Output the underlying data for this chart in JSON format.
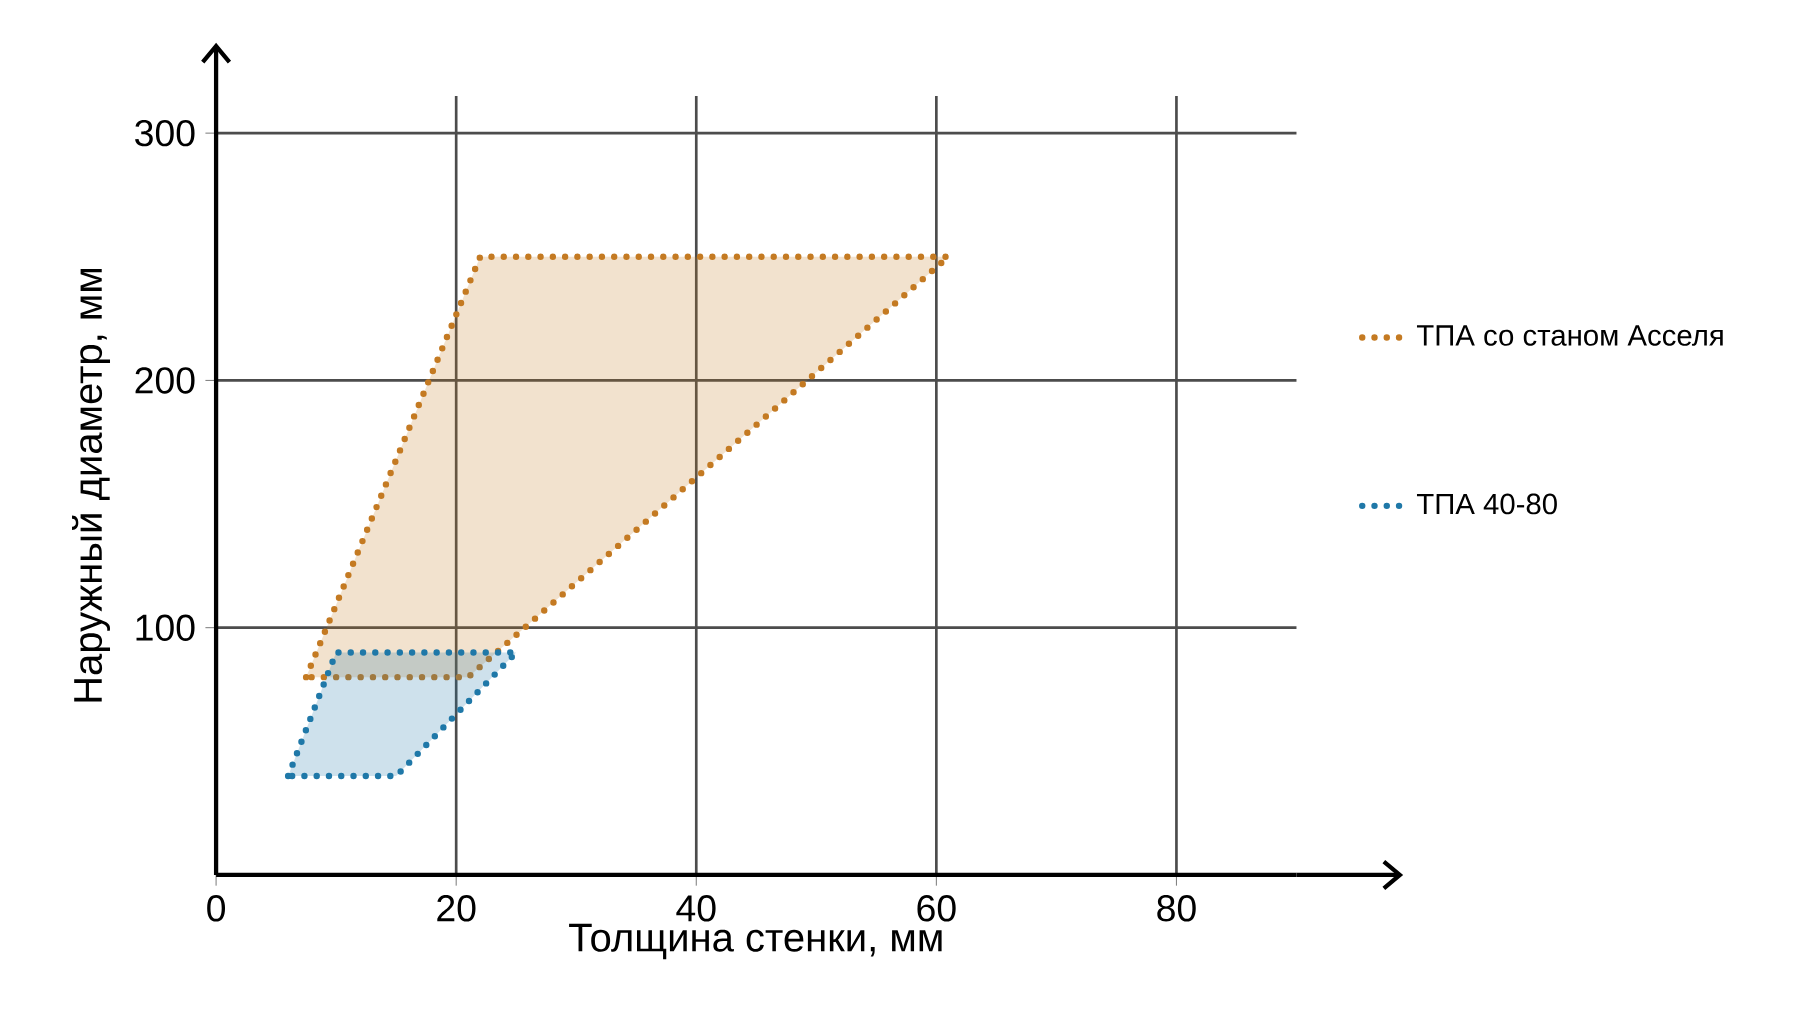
{
  "chart_data": {
    "type": "area",
    "xlabel": "Толщина стенки, мм",
    "ylabel": "Наружный диаметр, мм",
    "xlim": [
      0,
      90
    ],
    "ylim": [
      0,
      315
    ],
    "xticks": [
      0,
      20,
      40,
      60,
      80
    ],
    "yticks": [
      100,
      200,
      300
    ],
    "grid": true,
    "legend": "right",
    "line_style": "dotted",
    "series": [
      {
        "name": "ТПА со станом Асселя",
        "color": "#c47a22",
        "x": [
          7.5,
          22,
          61,
          21,
          7.5
        ],
        "values": [
          80,
          250,
          250,
          80,
          80
        ]
      },
      {
        "name": "ТПА 40-80",
        "color": "#1f78a8",
        "x": [
          6,
          10,
          25,
          15,
          6
        ],
        "values": [
          40,
          90,
          90,
          40,
          40
        ]
      }
    ]
  }
}
